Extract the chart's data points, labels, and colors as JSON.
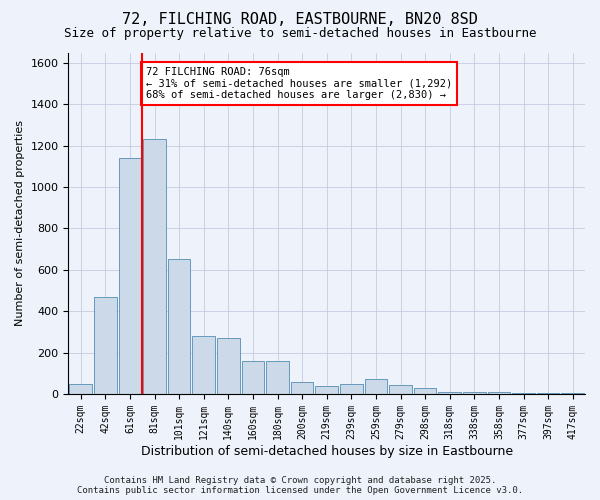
{
  "title": "72, FILCHING ROAD, EASTBOURNE, BN20 8SD",
  "subtitle": "Size of property relative to semi-detached houses in Eastbourne",
  "xlabel": "Distribution of semi-detached houses by size in Eastbourne",
  "ylabel": "Number of semi-detached properties",
  "categories": [
    "22sqm",
    "42sqm",
    "61sqm",
    "81sqm",
    "101sqm",
    "121sqm",
    "140sqm",
    "160sqm",
    "180sqm",
    "200sqm",
    "219sqm",
    "239sqm",
    "259sqm",
    "279sqm",
    "298sqm",
    "318sqm",
    "338sqm",
    "358sqm",
    "377sqm",
    "397sqm",
    "417sqm"
  ],
  "values": [
    50,
    470,
    1140,
    1230,
    650,
    280,
    270,
    160,
    160,
    60,
    40,
    50,
    70,
    45,
    30,
    10,
    10,
    10,
    5,
    5,
    5
  ],
  "bar_color": "#ccd9e8",
  "bar_edge_color": "#6699bb",
  "redline_x": 2.5,
  "annotation_text": "72 FILCHING ROAD: 76sqm\n← 31% of semi-detached houses are smaller (1,292)\n68% of semi-detached houses are larger (2,830) →",
  "annotation_box_color": "white",
  "annotation_box_edgecolor": "red",
  "redline_color": "red",
  "ylim": [
    0,
    1650
  ],
  "yticks": [
    0,
    200,
    400,
    600,
    800,
    1000,
    1200,
    1400,
    1600
  ],
  "footer_line1": "Contains HM Land Registry data © Crown copyright and database right 2025.",
  "footer_line2": "Contains public sector information licensed under the Open Government Licence v3.0.",
  "background_color": "#eef2fb",
  "grid_color": "#c5cce0",
  "title_fontsize": 11,
  "subtitle_fontsize": 9,
  "annotation_fontsize": 7.5,
  "footer_fontsize": 6.5,
  "ylabel_fontsize": 8,
  "xlabel_fontsize": 9
}
